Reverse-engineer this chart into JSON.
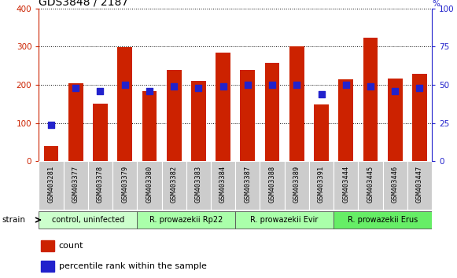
{
  "title": "GDS3848 / 2187",
  "samples": [
    "GSM403281",
    "GSM403377",
    "GSM403378",
    "GSM403379",
    "GSM403380",
    "GSM403382",
    "GSM403383",
    "GSM403384",
    "GSM403387",
    "GSM403388",
    "GSM403389",
    "GSM403391",
    "GSM403444",
    "GSM403445",
    "GSM403446",
    "GSM403447"
  ],
  "counts": [
    40,
    205,
    150,
    298,
    183,
    238,
    210,
    285,
    240,
    258,
    300,
    148,
    215,
    323,
    217,
    228
  ],
  "percentiles": [
    24,
    48,
    46,
    50,
    46,
    49,
    48,
    49,
    50,
    50,
    50,
    44,
    50,
    49,
    46,
    48
  ],
  "bar_color": "#cc2200",
  "dot_color": "#2222cc",
  "ylim_left": [
    0,
    400
  ],
  "ylim_right": [
    0,
    100
  ],
  "yticks_left": [
    0,
    100,
    200,
    300,
    400
  ],
  "yticks_right": [
    0,
    25,
    50,
    75,
    100
  ],
  "bg_color": "#ffffff",
  "group_defs": [
    {
      "label": "control, uninfected",
      "start": 0,
      "end": 3,
      "color": "#ccffcc"
    },
    {
      "label": "R. prowazekii Rp22",
      "start": 4,
      "end": 7,
      "color": "#aaffaa"
    },
    {
      "label": "R. prowazekii Evir",
      "start": 8,
      "end": 11,
      "color": "#aaffaa"
    },
    {
      "label": "R. prowazekii Erus",
      "start": 12,
      "end": 15,
      "color": "#66ee66"
    }
  ],
  "strain_label": "strain",
  "legend_count_label": "count",
  "legend_pct_label": "percentile rank within the sample",
  "title_fontsize": 10,
  "axis_color_left": "#cc2200",
  "axis_color_right": "#2222cc",
  "xtick_bg_color": "#cccccc",
  "xtick_border_color": "#ffffff"
}
